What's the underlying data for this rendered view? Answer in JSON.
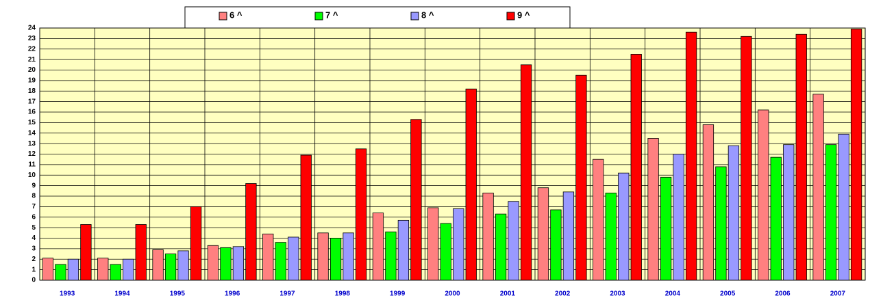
{
  "chart_data": {
    "type": "bar",
    "categories": [
      "1993",
      "1994",
      "1995",
      "1996",
      "1997",
      "1998",
      "1999",
      "2000",
      "2001",
      "2002",
      "2003",
      "2004",
      "2005",
      "2006",
      "2007"
    ],
    "series": [
      {
        "name": "6 ^",
        "color": "#ff8080",
        "values": [
          2.1,
          2.1,
          2.9,
          3.3,
          4.4,
          4.5,
          6.4,
          6.9,
          8.3,
          8.8,
          11.5,
          13.5,
          14.8,
          16.2,
          17.7
        ]
      },
      {
        "name": "7 ^",
        "color": "#00ff00",
        "values": [
          1.5,
          1.5,
          2.5,
          3.1,
          3.6,
          4.0,
          4.6,
          5.4,
          6.3,
          6.7,
          8.3,
          9.8,
          10.8,
          11.7,
          12.9
        ]
      },
      {
        "name": "8 ^",
        "color": "#9999ff",
        "values": [
          2.0,
          2.0,
          2.8,
          3.2,
          4.1,
          4.5,
          5.7,
          6.8,
          7.5,
          8.4,
          10.2,
          12.0,
          12.8,
          12.9,
          13.9
        ]
      },
      {
        "name": "9 ^",
        "color": "#ff0000",
        "values": [
          5.3,
          5.3,
          7.0,
          9.2,
          11.9,
          12.5,
          15.3,
          18.2,
          20.5,
          19.5,
          21.5,
          23.6,
          23.2,
          23.4,
          23.9
        ]
      }
    ],
    "ylim": [
      0,
      24
    ],
    "yticks": [
      0,
      1,
      2,
      3,
      4,
      5,
      6,
      7,
      8,
      9,
      10,
      11,
      12,
      13,
      14,
      15,
      16,
      17,
      18,
      19,
      20,
      21,
      22,
      23,
      24
    ],
    "grid": true,
    "legend": "top"
  }
}
